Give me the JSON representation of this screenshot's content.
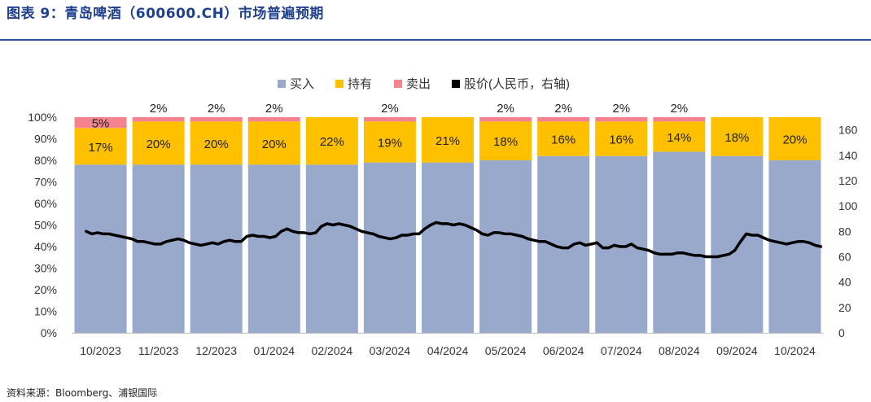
{
  "header": {
    "title": "图表 9：青岛啤酒（600600.CH）市场普遍预期"
  },
  "footer": {
    "source": "资料来源：Bloomberg、浦银国际"
  },
  "chart_data": {
    "type": "bar",
    "stacked": true,
    "title": "图表 9：青岛啤酒（600600.CH）市场普遍预期",
    "categories": [
      "10/2023",
      "11/2023",
      "12/2023",
      "01/2024",
      "02/2024",
      "03/2024",
      "04/2024",
      "05/2024",
      "06/2024",
      "07/2024",
      "08/2024",
      "09/2024",
      "10/2024"
    ],
    "series": [
      {
        "name": "买入",
        "color": "#99a9cb",
        "values": [
          78,
          78,
          78,
          78,
          78,
          79,
          79,
          80,
          82,
          82,
          84,
          82,
          80
        ],
        "labels": [
          null,
          null,
          null,
          null,
          null,
          null,
          null,
          null,
          null,
          null,
          null,
          null,
          null
        ]
      },
      {
        "name": "持有",
        "color": "#ffc000",
        "values": [
          17,
          20,
          20,
          20,
          22,
          19,
          21,
          18,
          16,
          16,
          14,
          18,
          20
        ],
        "labels": [
          "17%",
          "20%",
          "20%",
          "20%",
          "22%",
          "19%",
          "21%",
          "18%",
          "16%",
          "16%",
          "14%",
          "18%",
          "20%"
        ]
      },
      {
        "name": "卖出",
        "color": "#f4828f",
        "values": [
          5,
          2,
          2,
          2,
          0,
          2,
          0,
          2,
          2,
          2,
          2,
          0,
          0
        ],
        "labels": [
          "5%",
          "2%",
          "2%",
          "2%",
          null,
          "2%",
          null,
          "2%",
          "2%",
          "2%",
          "2%",
          null,
          null
        ]
      }
    ],
    "line_series": {
      "name": "股价(人民币，右轴)",
      "color": "#000000",
      "axis": "right",
      "values": [
        80,
        78,
        79,
        78,
        78,
        77,
        76,
        75,
        74,
        72,
        72,
        71,
        70,
        70,
        72,
        73,
        74,
        73,
        71,
        70,
        69,
        70,
        71,
        70,
        72,
        73,
        72,
        72,
        76,
        77,
        76,
        76,
        75,
        76,
        80,
        82,
        80,
        79,
        79,
        78,
        79,
        84,
        86,
        85,
        86,
        85,
        84,
        82,
        80,
        79,
        78,
        76,
        75,
        74,
        75,
        77,
        77,
        78,
        78,
        82,
        85,
        87,
        86,
        86,
        85,
        86,
        85,
        83,
        81,
        78,
        77,
        79,
        79,
        78,
        78,
        77,
        76,
        74,
        73,
        72,
        72,
        70,
        68,
        67,
        67,
        70,
        71,
        69,
        70,
        71,
        67,
        67,
        69,
        68,
        68,
        70,
        67,
        66,
        65,
        63,
        62,
        62,
        62,
        63,
        63,
        62,
        61,
        61,
        60,
        60,
        60,
        61,
        62,
        65,
        72,
        78,
        77,
        77,
        75,
        73,
        72,
        71,
        70,
        71,
        72,
        72,
        71,
        69,
        68
      ]
    },
    "y_left": {
      "min": 0,
      "max": 100,
      "step": 10,
      "unit": "%",
      "ticks": [
        "0%",
        "10%",
        "20%",
        "30%",
        "40%",
        "50%",
        "60%",
        "70%",
        "80%",
        "90%",
        "100%"
      ]
    },
    "y_right": {
      "min": 0,
      "max": 170,
      "ticks": [
        "0",
        "20",
        "40",
        "60",
        "80",
        "100",
        "120",
        "140",
        "160"
      ]
    },
    "legend": {
      "placement": "top",
      "entries": [
        "买入",
        "持有",
        "卖出",
        "股价(人民币，右轴)"
      ]
    },
    "grid": false
  }
}
